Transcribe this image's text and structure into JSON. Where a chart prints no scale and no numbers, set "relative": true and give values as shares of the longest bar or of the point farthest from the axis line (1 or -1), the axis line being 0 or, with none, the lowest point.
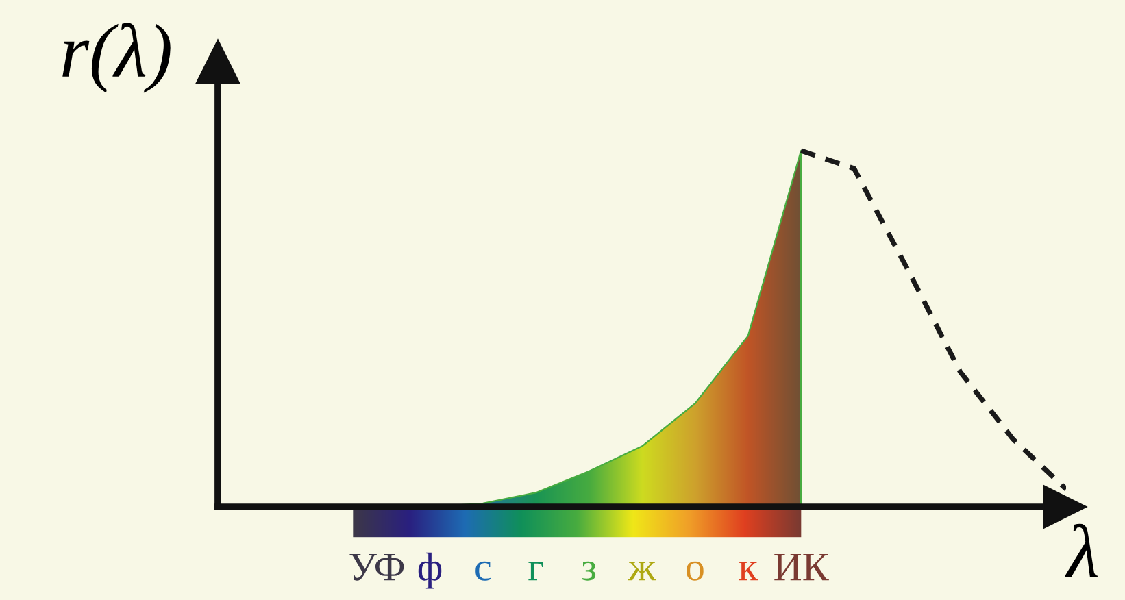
{
  "chart_data": {
    "type": "area",
    "relative": true,
    "xlabel": "λ",
    "ylabel": "r(λ)",
    "tick_labels": "x",
    "categories": [
      null,
      null,
      null,
      "УФ",
      "ф",
      "с",
      "г",
      "з",
      "ж",
      "о",
      "к",
      "ИК",
      null,
      null,
      null,
      null,
      null
    ],
    "series": [
      {
        "type": "area",
        "values": [
          null,
          null,
          null,
          null,
          0,
          0.01,
          0.04,
          0.1,
          0.17,
          0.29,
          0.48,
          1.0,
          null,
          null,
          null,
          null,
          null
        ],
        "colors": [
          null,
          null,
          null,
          "#3d3848",
          "#2a2080",
          "#1e6cb4",
          "#10905a",
          "#48ac40",
          "#f0e818",
          "#f0a028",
          "#e04020",
          "#7a3a32",
          null,
          null,
          null,
          null,
          null
        ]
      },
      {
        "type": "line",
        "color": "#1a1a1a",
        "line_style": "dashed",
        "values": [
          null,
          null,
          null,
          null,
          null,
          null,
          null,
          null,
          null,
          null,
          null,
          1.0,
          0.95,
          0.67,
          0.38,
          0.19,
          0.05
        ]
      }
    ]
  }
}
